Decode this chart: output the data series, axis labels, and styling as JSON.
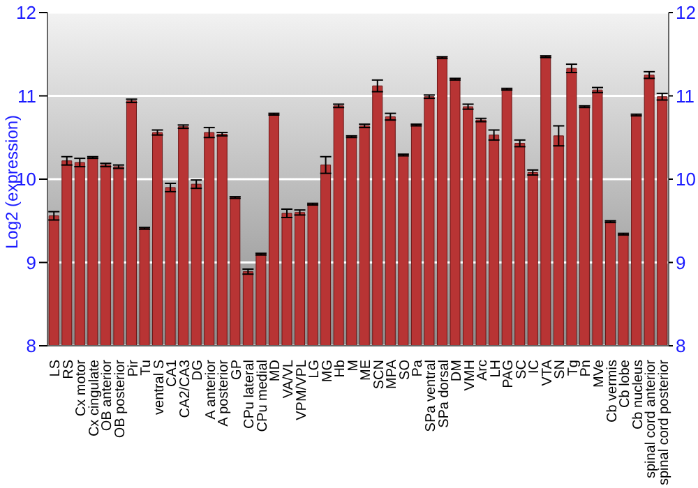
{
  "chart_data": {
    "type": "bar",
    "ylabel": "Log2 (expression)",
    "categories": [
      "LS",
      "RS",
      "Cx motor",
      "Cx cingulate",
      "OB anterior",
      "OB posterior",
      "Pir",
      "Tu",
      "ventral S",
      "CA1",
      "CA2/CA3",
      "DG",
      "A anterior",
      "A posterior",
      "GP",
      "CPu lateral",
      "CPu medial",
      "MD",
      "VA/VL",
      "VPM/VPL",
      "LG",
      "MG",
      "Hb",
      "M",
      "ME",
      "SCN",
      "MPA",
      "SO",
      "Pa",
      "SPa ventral",
      "SPa dorsal",
      "DM",
      "VMH",
      "Arc",
      "LH",
      "PAG",
      "SC",
      "IC",
      "VTA",
      "SN",
      "Tg",
      "Pn",
      "MVe",
      "Cb vermis",
      "Cb lobe",
      "Cb nucleus",
      "spinal cord anterior",
      "spinal cord posterior"
    ],
    "values": [
      9.56,
      10.22,
      10.2,
      10.26,
      10.17,
      10.15,
      10.94,
      9.41,
      10.56,
      9.9,
      10.63,
      9.94,
      10.56,
      10.54,
      9.78,
      8.89,
      9.1,
      10.78,
      9.59,
      9.6,
      9.7,
      10.17,
      10.88,
      10.51,
      10.64,
      11.12,
      10.75,
      10.29,
      10.65,
      10.99,
      11.46,
      11.2,
      10.87,
      10.71,
      10.53,
      11.08,
      10.43,
      10.08,
      11.47,
      10.52,
      11.33,
      10.87,
      11.07,
      9.49,
      9.34,
      10.77,
      11.25,
      10.99
    ],
    "errors": [
      0.05,
      0.05,
      0.05,
      0.01,
      0.02,
      0.02,
      0.02,
      0.01,
      0.03,
      0.05,
      0.02,
      0.05,
      0.06,
      0.02,
      0.01,
      0.03,
      0.01,
      0.01,
      0.05,
      0.03,
      0.01,
      0.1,
      0.02,
      0.01,
      0.02,
      0.07,
      0.04,
      0.01,
      0.01,
      0.02,
      0.01,
      0.01,
      0.03,
      0.02,
      0.06,
      0.01,
      0.04,
      0.03,
      0.01,
      0.12,
      0.05,
      0.01,
      0.03,
      0.01,
      0.01,
      0.01,
      0.04,
      0.04
    ],
    "color": "#b83434",
    "ylim": [
      8,
      12
    ],
    "yticks": [
      8,
      9,
      10,
      11,
      12
    ],
    "y2lim": [
      8,
      12
    ],
    "y2ticks": [
      8,
      9,
      10,
      11,
      12
    ],
    "grid": "y"
  }
}
